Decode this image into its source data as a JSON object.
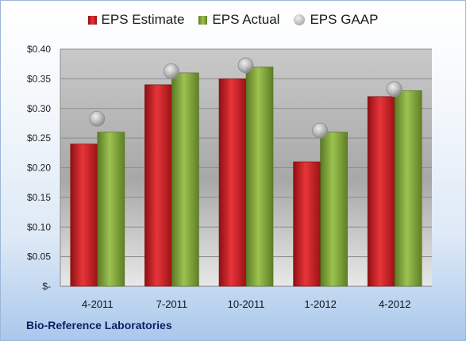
{
  "chart_data": {
    "type": "bar",
    "categories": [
      "4-2011",
      "7-2011",
      "10-2011",
      "1-2012",
      "4-2012"
    ],
    "series": [
      {
        "name": "EPS Estimate",
        "kind": "bar",
        "color": "#c0171b",
        "values": [
          0.24,
          0.34,
          0.35,
          0.21,
          0.32
        ]
      },
      {
        "name": "EPS Actual",
        "kind": "bar",
        "color": "#7fa33a",
        "values": [
          0.26,
          0.36,
          0.37,
          0.26,
          0.33
        ]
      },
      {
        "name": "EPS GAAP",
        "kind": "marker",
        "color": "#b5b5b5",
        "values": [
          0.28,
          0.36,
          0.37,
          0.26,
          0.33
        ]
      }
    ],
    "y_ticks": [
      "$-",
      "$0.05",
      "$0.10",
      "$0.15",
      "$0.20",
      "$0.25",
      "$0.30",
      "$0.35",
      "$0.40"
    ],
    "ylim": [
      0,
      0.4
    ],
    "grid": true,
    "legend_position": "top"
  },
  "footer": {
    "label": "Bio-Reference Laboratories"
  }
}
